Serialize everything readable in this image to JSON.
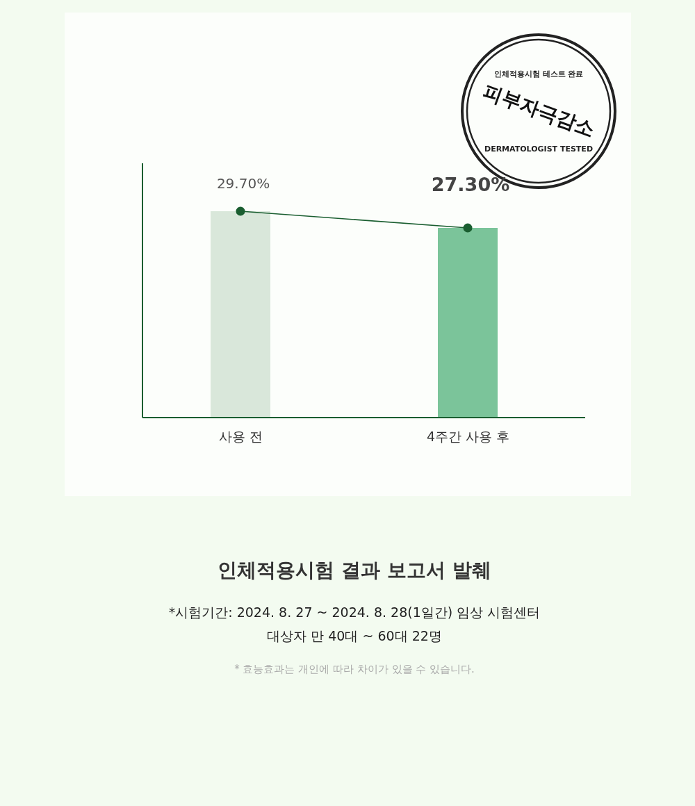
{
  "chart_data": {
    "type": "bar",
    "title": "인체적용시험 결과 보고서 발췌",
    "categories": [
      "사용 전",
      "4주간 사용 후"
    ],
    "series": [
      {
        "colors": [
          "#d9e7da",
          "#7bc49a"
        ],
        "values": [
          29.7,
          27.3
        ],
        "value_labels": [
          "29.70%",
          "27.30%"
        ]
      },
      {
        "type": "line",
        "color": "#1a5e30",
        "values": [
          29.7,
          27.3
        ],
        "marker": "circle",
        "line_style": "solid"
      }
    ],
    "annotations": [
      "인체적용시험 테스트 완료",
      "피부자극감소",
      "DERMATOLOGIST TESTED",
      "*시험기간: 2024. 8. 27 ~ 2024. 8. 28(1일간) 임상 시험센터",
      "대상자 만 40대 ~ 60대 22명",
      "* 효능효과는 개인에 따라 차이가 있을 수 있습니다."
    ],
    "tick_labels": "x"
  }
}
